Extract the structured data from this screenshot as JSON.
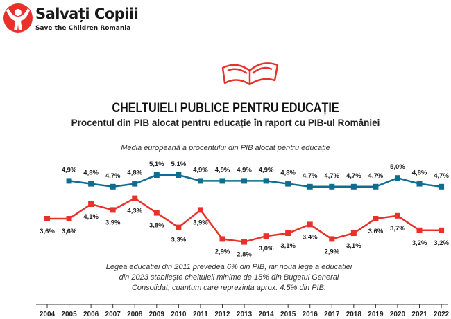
{
  "logo": {
    "name": "Salvați Copiii",
    "tagline": "Save the Children Romania"
  },
  "icon": "open-book-icon",
  "colors": {
    "eu": "#0f6e8f",
    "ro": "#e8312a",
    "brand": "#e8312a"
  },
  "chart_data": {
    "type": "line",
    "title": "CHELTUIELI PUBLICE PENTRU EDUCAȚIE",
    "subtitle": "Procentul din PIB alocat pentru educație în raport cu PIB-ul României",
    "annotation_top": "Media europeană a procentului din PIB alocat pentru educație",
    "annotation_bottom": "Legea educației din 2011 prevedea 6% din PIB, iar noua lege a educației din 2023 stabilește cheltuieli minime de 15% din Bugetul General Consolidat, cuantum care reprezinta aprox. 4.5% din PIB.",
    "x": [
      2004,
      2005,
      2006,
      2007,
      2008,
      2009,
      2010,
      2011,
      2012,
      2013,
      2014,
      2015,
      2016,
      2017,
      2018,
      2019,
      2020,
      2021,
      2022
    ],
    "series": [
      {
        "values": [
          null,
          4.9,
          4.8,
          4.7,
          4.8,
          5.1,
          5.1,
          4.9,
          4.9,
          4.9,
          4.9,
          4.8,
          4.7,
          4.7,
          4.7,
          4.7,
          5.0,
          4.8,
          4.7
        ],
        "labels": [
          "",
          "4,9%",
          "4,8%",
          "4,7%",
          "4,8%",
          "5,1%",
          "5,1%",
          "4,9%",
          "4,9%",
          "4,9%",
          "4,9%",
          "4,8%",
          "4,7%",
          "4,7%",
          "4,7%",
          "4,7%",
          "5,0%",
          "4,8%",
          "4,7%"
        ]
      },
      {
        "values": [
          3.6,
          3.6,
          4.1,
          3.9,
          4.3,
          3.8,
          3.3,
          3.9,
          2.9,
          2.8,
          3.0,
          3.1,
          3.4,
          2.9,
          3.1,
          3.6,
          3.7,
          3.2,
          3.2
        ],
        "labels": [
          "3,6%",
          "3,6%",
          "4,1%",
          "3,9%",
          "4,3%",
          "3,8%",
          "3,3%",
          "3,9%",
          "2,9%",
          "2,8%",
          "3,0%",
          "3,1%",
          "3,4%",
          "2,9%",
          "3,1%",
          "3,6%",
          "3,7%",
          "3,2%",
          "3,2%"
        ]
      }
    ],
    "grid": false
  }
}
